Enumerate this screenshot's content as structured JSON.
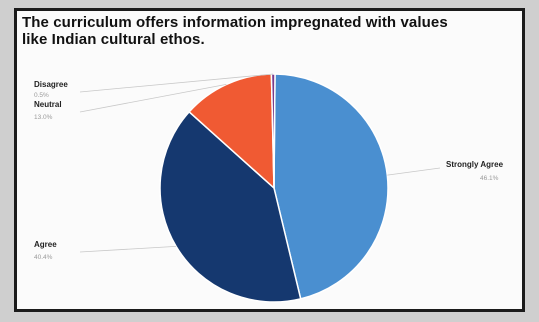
{
  "title_lines": [
    "The curriculum offers information impregnated with values",
    "like Indian cultural ethos."
  ],
  "chart_data": {
    "type": "pie",
    "title": "The curriculum offers information impregnated with values like Indian cultural ethos.",
    "slices": [
      {
        "label": "Strongly Agree",
        "value": 46.1,
        "display": "46.1%",
        "color": "#4a8fd0"
      },
      {
        "label": "Agree",
        "value": 40.4,
        "display": "40.4%",
        "color": "#15386f"
      },
      {
        "label": "Neutral",
        "value": 13.0,
        "display": "13.0%",
        "color": "#f05a33"
      },
      {
        "label": "Disagree",
        "value": 0.5,
        "display": "0.5%",
        "color": "#7a3a8a"
      }
    ],
    "legend": "none",
    "labels": "outside-with-leader-lines"
  }
}
